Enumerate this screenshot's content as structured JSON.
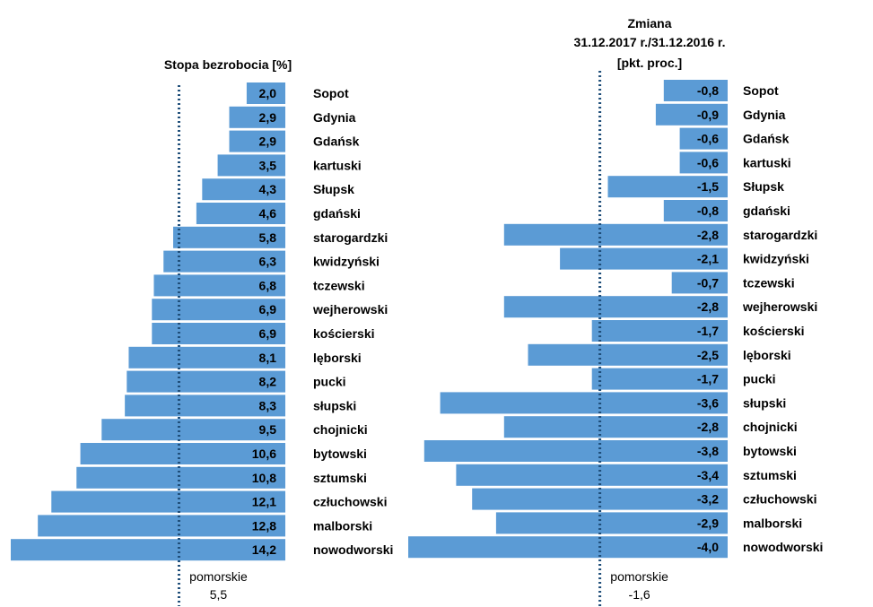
{
  "chart_data": [
    {
      "type": "bar",
      "orientation": "horizontal",
      "title": "Stopa bezrobocia [%]",
      "bar_color": "#5B9BD5",
      "categories": [
        "Sopot",
        "Gdynia",
        "Gdańsk",
        "kartuski",
        "Słupsk",
        "gdański",
        "starogardzki",
        "kwidzyński",
        "tczewski",
        "wejherowski",
        "kościerski",
        "lęborski",
        "pucki",
        "słupski",
        "chojnicki",
        "bytowski",
        "sztumski",
        "człuchowski",
        "malborski",
        "nowodworski"
      ],
      "values": [
        2.0,
        2.9,
        2.9,
        3.5,
        4.3,
        4.6,
        5.8,
        6.3,
        6.8,
        6.9,
        6.9,
        8.1,
        8.2,
        8.3,
        9.5,
        10.6,
        10.8,
        12.1,
        12.8,
        14.2
      ],
      "value_labels": [
        "2,0",
        "2,9",
        "2,9",
        "3,5",
        "4,3",
        "4,6",
        "5,8",
        "6,3",
        "6,8",
        "6,9",
        "6,9",
        "8,1",
        "8,2",
        "8,3",
        "9,5",
        "10,6",
        "10,8",
        "12,1",
        "12,8",
        "14,2"
      ],
      "reference": {
        "label": "pomorskie",
        "value": 5.5,
        "value_label": "5,5"
      },
      "xlim": [
        0,
        14.2
      ],
      "grid": false
    },
    {
      "type": "bar",
      "orientation": "horizontal",
      "title": [
        "Zmiana",
        "31.12.2017 r./31.12.2016 r.",
        "[pkt. proc.]"
      ],
      "bar_color": "#5B9BD5",
      "categories": [
        "Sopot",
        "Gdynia",
        "Gdańsk",
        "kartuski",
        "Słupsk",
        "gdański",
        "starogardzki",
        "kwidzyński",
        "tczewski",
        "wejherowski",
        "kościerski",
        "lęborski",
        "pucki",
        "słupski",
        "chojnicki",
        "bytowski",
        "sztumski",
        "człuchowski",
        "malborski",
        "nowodworski"
      ],
      "values": [
        -0.8,
        -0.9,
        -0.6,
        -0.6,
        -1.5,
        -0.8,
        -2.8,
        -2.1,
        -0.7,
        -2.8,
        -1.7,
        -2.5,
        -1.7,
        -3.6,
        -2.8,
        -3.8,
        -3.4,
        -3.2,
        -2.9,
        -4.0
      ],
      "value_labels": [
        "-0,8",
        "-0,9",
        "-0,6",
        "-0,6",
        "-1,5",
        "-0,8",
        "-2,8",
        "-2,1",
        "-0,7",
        "-2,8",
        "-1,7",
        "-2,5",
        "-1,7",
        "-3,6",
        "-2,8",
        "-3,8",
        "-3,4",
        "-3,2",
        "-2,9",
        "-4,0"
      ],
      "reference": {
        "label": "pomorskie",
        "value": -1.6,
        "value_label": "-1,6"
      },
      "xlim": [
        -4.0,
        0
      ],
      "grid": false
    }
  ]
}
